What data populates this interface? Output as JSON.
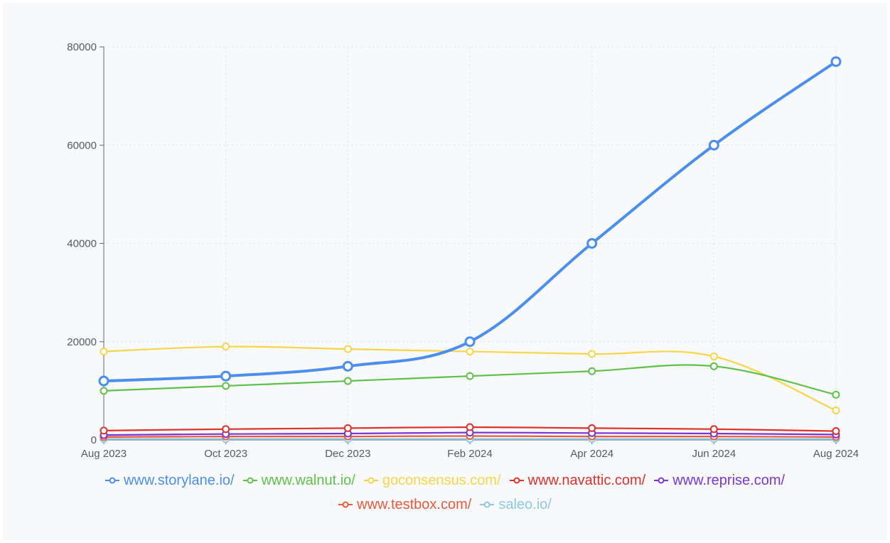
{
  "chart_data": {
    "type": "line",
    "x": [
      "Aug 2023",
      "Oct 2023",
      "Dec 2023",
      "Feb 2024",
      "Apr 2024",
      "Jun 2024",
      "Aug 2024"
    ],
    "ylim": [
      0,
      80000
    ],
    "yticks": [
      "0",
      "20000",
      "40000",
      "60000",
      "80000"
    ],
    "grid": true,
    "legend_position": "bottom",
    "series": [
      {
        "name": "www.storylane.io/",
        "color": "#4a8fef",
        "values": [
          12000,
          13000,
          15000,
          20000,
          40000,
          60000,
          77000
        ]
      },
      {
        "name": "www.walnut.io/",
        "color": "#5ec14a",
        "values": [
          10000,
          11000,
          12000,
          13000,
          14000,
          15000,
          9200
        ]
      },
      {
        "name": "goconsensus.com/",
        "color": "#f7d54a",
        "values": [
          18000,
          19000,
          18500,
          18000,
          17500,
          17000,
          6000
        ]
      },
      {
        "name": "www.navattic.com/",
        "color": "#e0302b",
        "values": [
          1900,
          2200,
          2400,
          2600,
          2400,
          2200,
          1800
        ]
      },
      {
        "name": "www.reprise.com/",
        "color": "#7a35d6",
        "values": [
          1000,
          1200,
          1300,
          1500,
          1400,
          1300,
          1100
        ]
      },
      {
        "name": "www.testbox.com/",
        "color": "#ea5a3a",
        "values": [
          600,
          700,
          700,
          800,
          700,
          700,
          600
        ]
      },
      {
        "name": "saleo.io/",
        "color": "#8cc8e8",
        "values": [
          200,
          200,
          200,
          200,
          200,
          200,
          200
        ]
      }
    ]
  }
}
